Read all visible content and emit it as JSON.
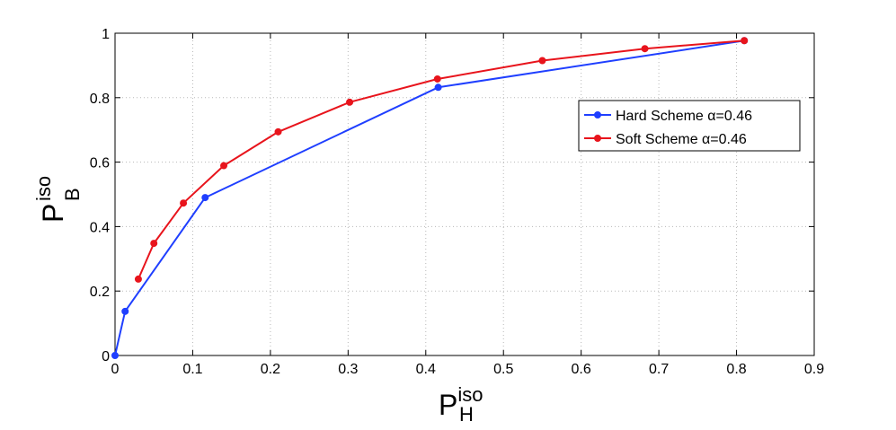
{
  "chart_data": {
    "type": "line",
    "xlabel": {
      "main": "P",
      "sup": "iso",
      "sub": "H"
    },
    "ylabel": {
      "main": "P",
      "sup": "iso",
      "sub": "B"
    },
    "xlim": [
      0,
      0.9
    ],
    "ylim": [
      0,
      1
    ],
    "xticks": [
      0,
      0.1,
      0.2,
      0.3,
      0.4,
      0.5,
      0.6,
      0.7,
      0.8,
      0.9
    ],
    "yticks": [
      0,
      0.2,
      0.4,
      0.6,
      0.8,
      1
    ],
    "xtick_labels": [
      "0",
      "0.1",
      "0.2",
      "0.3",
      "0.4",
      "0.5",
      "0.6",
      "0.7",
      "0.8",
      "0.9"
    ],
    "ytick_labels": [
      "0",
      "0.2",
      "0.4",
      "0.6",
      "0.8",
      "1"
    ],
    "grid": true,
    "legend_position": "top-right",
    "series": [
      {
        "name": "Hard Scheme α=0.46",
        "color": "#1f3fff",
        "points": [
          [
            0.0,
            0.0
          ],
          [
            0.013,
            0.137
          ],
          [
            0.116,
            0.49
          ],
          [
            0.416,
            0.832
          ],
          [
            0.81,
            0.977
          ]
        ]
      },
      {
        "name": "Soft Scheme α=0.46",
        "color": "#e8141c",
        "points": [
          [
            0.03,
            0.237
          ],
          [
            0.05,
            0.348
          ],
          [
            0.088,
            0.473
          ],
          [
            0.14,
            0.589
          ],
          [
            0.21,
            0.694
          ],
          [
            0.302,
            0.786
          ],
          [
            0.415,
            0.858
          ],
          [
            0.55,
            0.915
          ],
          [
            0.682,
            0.952
          ],
          [
            0.81,
            0.977
          ]
        ]
      }
    ]
  }
}
